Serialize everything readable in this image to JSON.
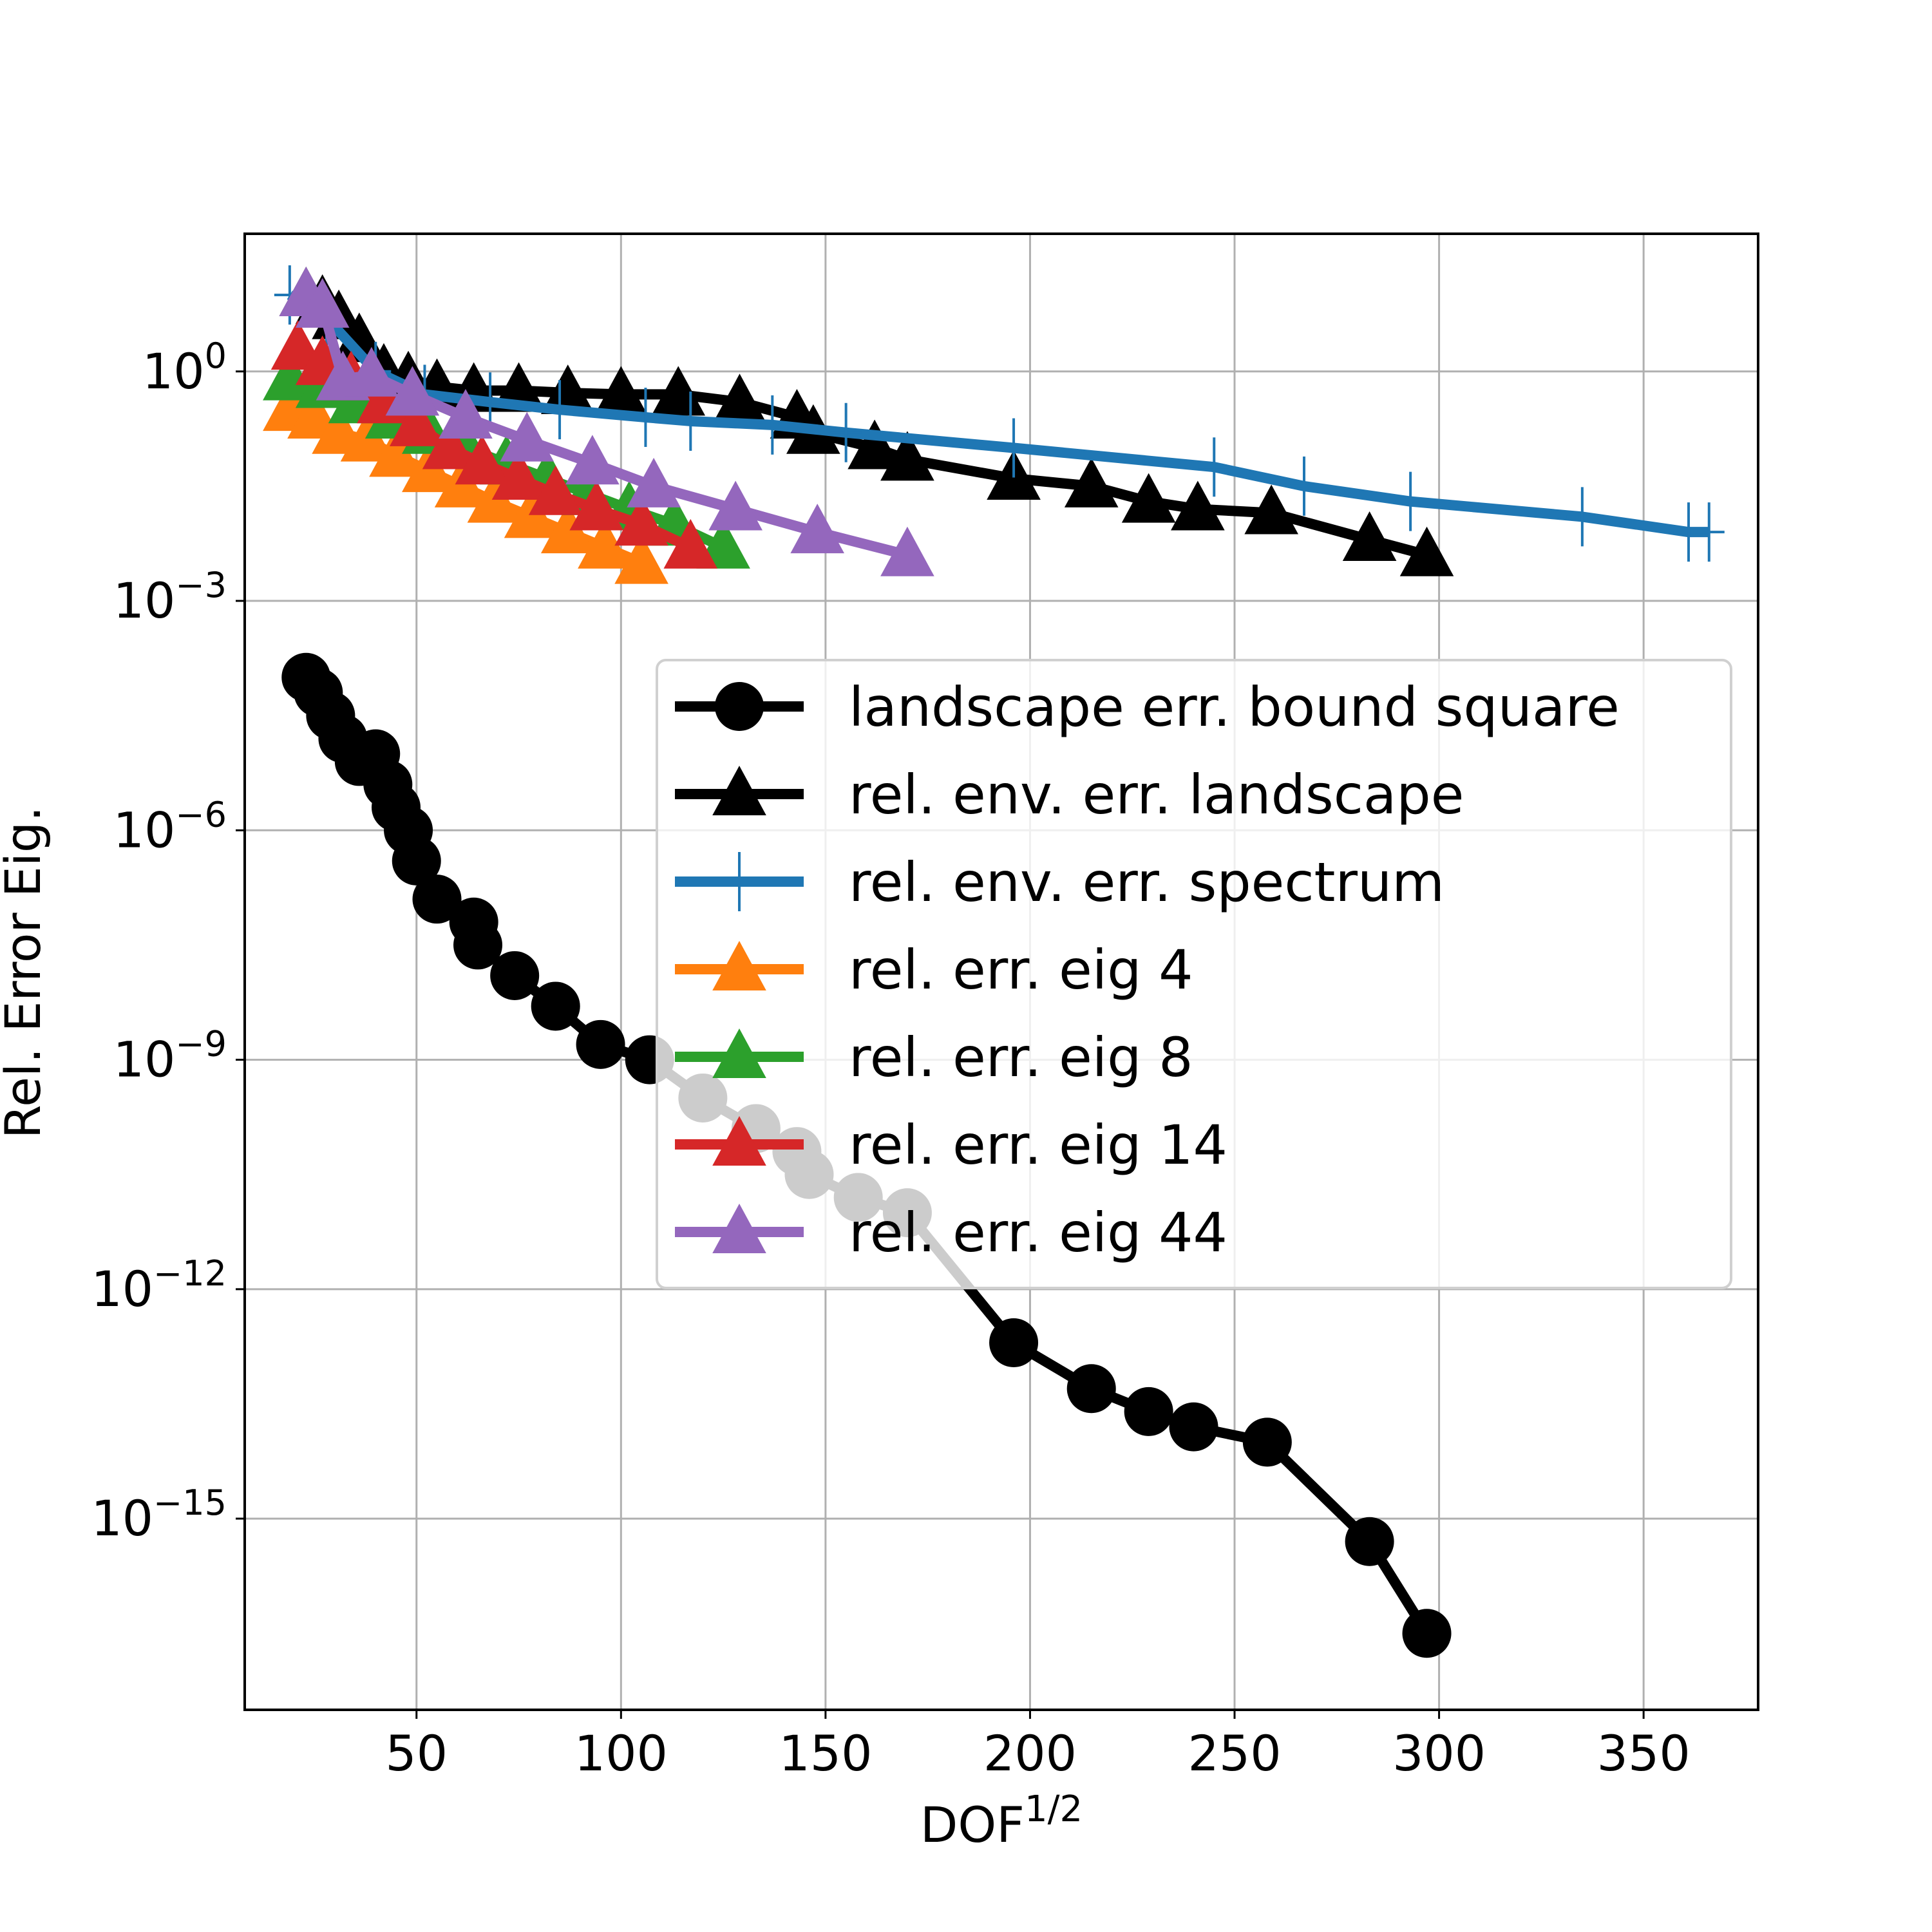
{
  "chart_data": {
    "type": "line",
    "title": "",
    "xlabel": "DOF",
    "xlabel_superscript": "1/2",
    "ylabel": "Rel. Error Eig.",
    "xscale": "linear",
    "yscale": "log",
    "xlim": [
      8,
      378
    ],
    "ylim_log10": [
      -17.5,
      1.8
    ],
    "grid": true,
    "legend_position": "center-right",
    "x_ticks": [
      50,
      100,
      150,
      200,
      250,
      300,
      350
    ],
    "x_tick_labels": [
      "50",
      "100",
      "150",
      "200",
      "250",
      "300",
      "350"
    ],
    "y_ticks_log10": [
      0,
      -3,
      -6,
      -9,
      -12,
      -15
    ],
    "y_tick_base": "10",
    "y_tick_exponents": [
      "0",
      "−3",
      "−6",
      "−9",
      "−12",
      "−15"
    ],
    "series": [
      {
        "name": "landscape err. bound square",
        "color": "#000000",
        "marker": "circle",
        "x": [
          23,
          26,
          29,
          32,
          36,
          40,
          43,
          45,
          48,
          50,
          55,
          64,
          65,
          74,
          84,
          95,
          107,
          120,
          133,
          143,
          146,
          158,
          170,
          196,
          215,
          229,
          240,
          258,
          283,
          297
        ],
        "log10_y": [
          -4.0,
          -4.2,
          -4.5,
          -4.8,
          -5.1,
          -5.0,
          -5.4,
          -5.7,
          -6.0,
          -6.4,
          -6.9,
          -7.2,
          -7.5,
          -7.9,
          -8.3,
          -8.8,
          -9.0,
          -9.5,
          -9.9,
          -10.2,
          -10.5,
          -10.8,
          -11.0,
          -12.7,
          -13.3,
          -13.6,
          -13.8,
          -14.0,
          -15.3,
          -16.5
        ]
      },
      {
        "name": "rel. env. err. landscape",
        "color": "#000000",
        "marker": "triangle",
        "x": [
          23,
          27,
          31,
          36,
          42,
          48,
          55,
          64,
          75,
          87,
          100,
          114,
          129,
          143,
          147,
          162,
          170,
          196,
          215,
          229,
          241,
          259,
          283,
          297
        ],
        "log10_y": [
          1.0,
          0.9,
          0.7,
          0.4,
          0.0,
          -0.1,
          -0.2,
          -0.25,
          -0.25,
          -0.28,
          -0.3,
          -0.3,
          -0.4,
          -0.6,
          -0.8,
          -1.0,
          -1.15,
          -1.4,
          -1.5,
          -1.7,
          -1.8,
          -1.85,
          -2.2,
          -2.4
        ]
      },
      {
        "name": "rel. env. err. spectrum",
        "color": "#1f77b4",
        "marker": "plus",
        "x": [
          19,
          28,
          40,
          52,
          68,
          85,
          106,
          117,
          137,
          155,
          196,
          245,
          267,
          293,
          335,
          361,
          366
        ],
        "log10_y": [
          1.0,
          0.7,
          0.0,
          -0.3,
          -0.4,
          -0.5,
          -0.6,
          -0.65,
          -0.7,
          -0.8,
          -1.0,
          -1.25,
          -1.5,
          -1.7,
          -1.9,
          -2.1,
          -2.1
        ]
      },
      {
        "name": "rel. err. eig 4",
        "color": "#ff7f0e",
        "marker": "triangle",
        "x": [
          19,
          25,
          31,
          38,
          45,
          53,
          61,
          69,
          78,
          87,
          96,
          105
        ],
        "log10_y": [
          -0.5,
          -0.6,
          -0.8,
          -0.9,
          -1.1,
          -1.3,
          -1.5,
          -1.7,
          -1.9,
          -2.1,
          -2.3,
          -2.5
        ]
      },
      {
        "name": "rel. err. eig 8",
        "color": "#2ca02c",
        "marker": "triangle",
        "x": [
          19,
          27,
          35,
          44,
          53,
          62,
          72,
          82,
          92,
          102,
          113,
          125
        ],
        "log10_y": [
          -0.1,
          -0.2,
          -0.4,
          -0.6,
          -0.8,
          -1.0,
          -1.2,
          -1.4,
          -1.6,
          -1.8,
          -2.0,
          -2.3
        ]
      },
      {
        "name": "rel. err. eig 14",
        "color": "#d62728",
        "marker": "triangle",
        "x": [
          21,
          27,
          34,
          42,
          50,
          58,
          66,
          75,
          84,
          94,
          105,
          117
        ],
        "log10_y": [
          0.3,
          0.1,
          -0.1,
          -0.4,
          -0.7,
          -1.0,
          -1.2,
          -1.4,
          -1.6,
          -1.8,
          -2.0,
          -2.3
        ]
      },
      {
        "name": "rel. err. eig 44",
        "color": "#9467bd",
        "marker": "triangle",
        "x": [
          23,
          27,
          32,
          39,
          49,
          62,
          77,
          93,
          108,
          128,
          148,
          170
        ],
        "log10_y": [
          1.0,
          0.85,
          -0.1,
          -0.05,
          -0.3,
          -0.6,
          -0.9,
          -1.2,
          -1.5,
          -1.8,
          -2.1,
          -2.4
        ]
      }
    ]
  }
}
